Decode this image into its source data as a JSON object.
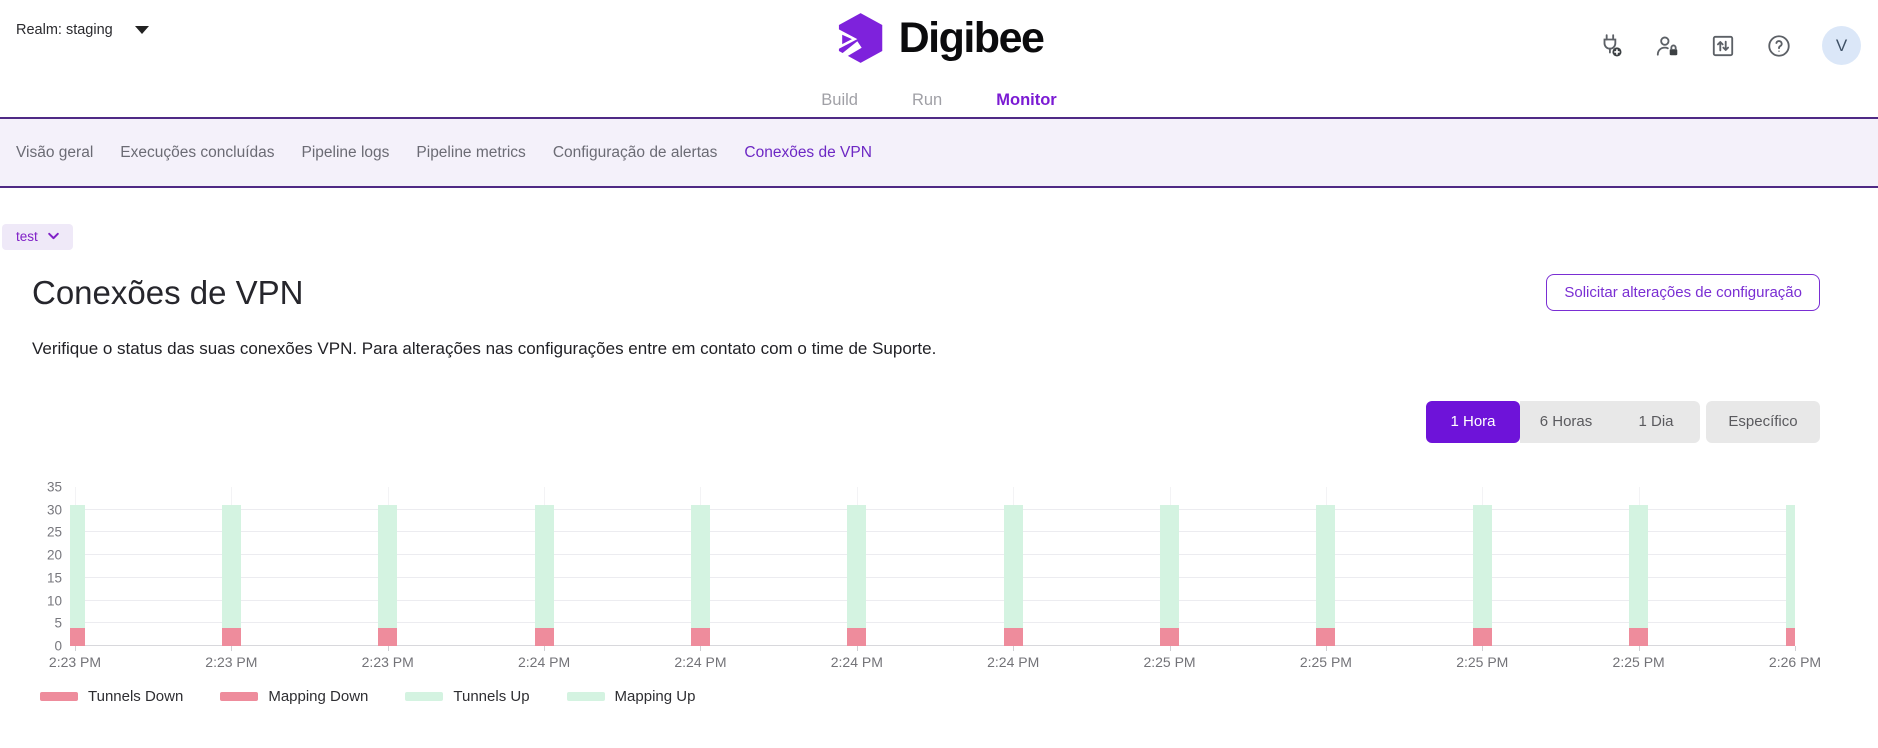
{
  "header": {
    "realm_label": "Realm: staging",
    "logo_text": "Digibee",
    "tabs": [
      {
        "label": "Build",
        "active": false
      },
      {
        "label": "Run",
        "active": false
      },
      {
        "label": "Monitor",
        "active": true
      }
    ],
    "icons": {
      "add_connector": "plug-plus-icon",
      "user_permissions": "person-lock-icon",
      "import_export": "arrows-up-down-box-icon",
      "help": "question-circle-icon"
    },
    "avatar_initial": "V"
  },
  "subnav": {
    "items": [
      {
        "label": "Visão geral",
        "active": false
      },
      {
        "label": "Execuções concluídas",
        "active": false
      },
      {
        "label": "Pipeline logs",
        "active": false
      },
      {
        "label": "Pipeline metrics",
        "active": false
      },
      {
        "label": "Configuração de alertas",
        "active": false
      },
      {
        "label": "Conexões de VPN",
        "active": true
      }
    ]
  },
  "content": {
    "env_selector": "test",
    "page_title": "Conexões de VPN",
    "description": "Verifique o status das suas conexões VPN. Para alterações nas configurações entre em contato com o time de Suporte.",
    "request_button": "Solicitar alterações de configuração",
    "time_ranges": [
      {
        "label": "1 Hora",
        "active": true
      },
      {
        "label": "6 Horas",
        "active": false
      },
      {
        "label": "1 Dia",
        "active": false
      },
      {
        "label": "Específico",
        "active": false
      }
    ]
  },
  "chart_data": {
    "type": "bar",
    "stacked": true,
    "title": "",
    "xlabel": "",
    "ylabel": "",
    "ylim": [
      0,
      35
    ],
    "yticks": [
      0,
      5,
      10,
      15,
      20,
      25,
      30,
      35
    ],
    "grid": true,
    "legend_position": "bottom",
    "categories": [
      "2:23 PM",
      "2:23 PM",
      "2:23 PM",
      "2:24 PM",
      "2:24 PM",
      "2:24 PM",
      "2:24 PM",
      "2:25 PM",
      "2:25 PM",
      "2:25 PM",
      "2:25 PM",
      "2:26 PM"
    ],
    "series": [
      {
        "name": "Tunnels Down",
        "color": "#ee8c9c",
        "values": [
          2,
          2,
          2,
          2,
          2,
          2,
          2,
          2,
          2,
          2,
          2,
          2
        ]
      },
      {
        "name": "Mapping Down",
        "color": "#ee8c9c",
        "values": [
          2,
          2,
          2,
          2,
          2,
          2,
          2,
          2,
          2,
          2,
          2,
          2
        ]
      },
      {
        "name": "Tunnels Up",
        "color": "#d4f3e1",
        "values": [
          13.5,
          13.5,
          13.5,
          13.5,
          13.5,
          13.5,
          13.5,
          13.5,
          13.5,
          13.5,
          13.5,
          13.5
        ]
      },
      {
        "name": "Mapping Up",
        "color": "#d4f3e1",
        "values": [
          13.5,
          13.5,
          13.5,
          13.5,
          13.5,
          13.5,
          13.5,
          13.5,
          13.5,
          13.5,
          13.5,
          13.5
        ]
      }
    ],
    "visible_segment_totals": {
      "down_top": 4,
      "stack_top": 31
    }
  },
  "colors": {
    "brand_purple": "#7e22dc",
    "active_tab": "#7b1bd3",
    "subnav_bg": "#f4f1fa",
    "subnav_border": "#4f2a85",
    "down_red": "#ee8c9c",
    "up_green": "#d4f3e1",
    "segment_active_bg": "#6e13d9"
  }
}
